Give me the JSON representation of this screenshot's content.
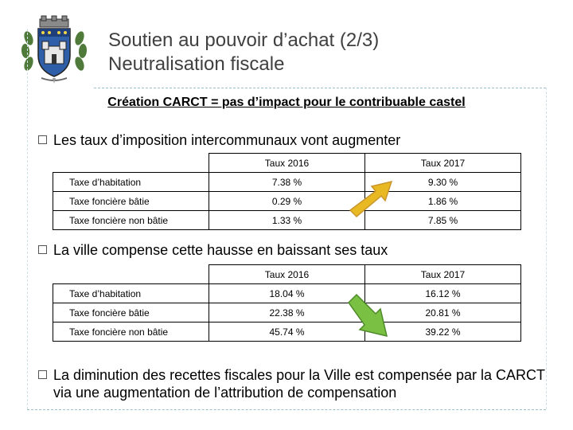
{
  "header": {
    "title_line1": "Soutien au pouvoir d’achat (2/3)",
    "title_line2": "Neutralisation fiscale",
    "emblem_icon": "coat-of-arms-icon"
  },
  "subtitle": "Création CARCT = pas d’impact pour le contribuable castel",
  "bullets": [
    "Les taux d’imposition intercommunaux vont augmenter",
    "La ville compense cette hausse en baissant ses taux",
    "La diminution des recettes fiscales pour la Ville est compensée par la CARCT via une augmentation de l’attribution de compensation"
  ],
  "table_intercommunal": {
    "headers": [
      "Taux 2016",
      "Taux 2017"
    ],
    "rows": [
      {
        "label": "Taxe d’habitation",
        "v2016": "7.38 %",
        "v2017": "9.30 %"
      },
      {
        "label": "Taxe foncière bâtie",
        "v2016": "0.29 %",
        "v2017": "1.86 %"
      },
      {
        "label": "Taxe foncière non bâtie",
        "v2016": "1.33 %",
        "v2017": "7.85 %"
      }
    ],
    "trend_arrow": "up-arrow-icon",
    "trend_color": "#e8b923"
  },
  "table_ville": {
    "headers": [
      "Taux 2016",
      "Taux 2017"
    ],
    "rows": [
      {
        "label": "Taxe d’habitation",
        "v2016": "18.04 %",
        "v2017": "16.12 %"
      },
      {
        "label": "Taxe foncière bâtie",
        "v2016": "22.38 %",
        "v2017": "20.81 %"
      },
      {
        "label": "Taxe foncière non bâtie",
        "v2016": "45.74 %",
        "v2017": "39.22 %"
      }
    ],
    "trend_arrow": "down-arrow-icon",
    "trend_color": "#7ac143"
  }
}
